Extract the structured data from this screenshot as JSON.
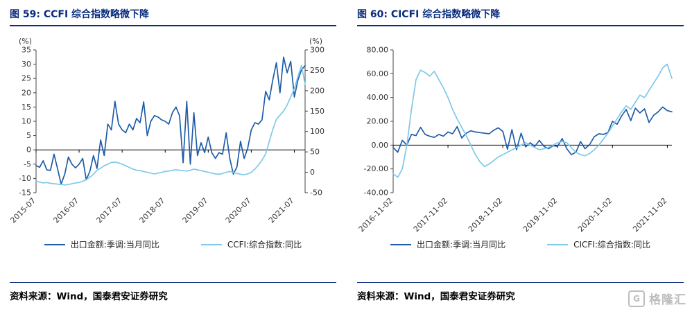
{
  "watermark": {
    "text": "格隆汇",
    "icon": "gelonghui-square-logo"
  },
  "colors": {
    "navy": "#0A2E7E",
    "dark_line": "#1F5CA9",
    "light_line": "#7EC9E8",
    "axis_text": "#333333",
    "zero_line": "#000000",
    "watermark_gray": "#BDBDBD"
  },
  "figures": [
    {
      "source": "资料来源：Wind，国泰君安证券研究"
    },
    {
      "source": "资料来源：Wind，国泰君安证券研究"
    }
  ],
  "chart_data": [
    {
      "type": "line",
      "title": "图 59: CCFI 综合指数略微下降",
      "xlabel": "",
      "ylabel_left": "(%)",
      "ylabel_right": "(%)",
      "grid": false,
      "legend_position": "bottom",
      "x_tick_labels": [
        "2015-07",
        "2016-07",
        "2017-07",
        "2018-07",
        "2019-07",
        "2020-07",
        "2021-07"
      ],
      "x_tick_positions": [
        0,
        12,
        24,
        36,
        48,
        60,
        72
      ],
      "left_axis": {
        "header": "(%)",
        "min": -15,
        "max": 35,
        "step": 5,
        "decimals": 0
      },
      "right_axis": {
        "header": "(%)",
        "min": -50,
        "max": 300,
        "step": 50,
        "decimals": 0
      },
      "series": [
        {
          "name": "出口金额:季调:当月同比",
          "axis": "left",
          "color": "#1F5CA9",
          "values": [
            -5.5,
            -6.1,
            -3.8,
            -7.0,
            -7.2,
            -1.5,
            -6.6,
            -12.0,
            -8.5,
            -2.5,
            -5.0,
            -6.3,
            -5.0,
            -3.0,
            -10.5,
            -7.5,
            -2.0,
            -6.5,
            3.5,
            -2.0,
            9.0,
            7.0,
            17.0,
            9.0,
            7.0,
            6.0,
            9.0,
            7.0,
            11.0,
            9.5,
            16.8,
            5.0,
            10.0,
            12.0,
            11.5,
            10.5,
            10.0,
            9.0,
            13.0,
            15.0,
            12.0,
            -4.5,
            17.0,
            -5.0,
            13.0,
            -2.0,
            2.5,
            -1.0,
            4.5,
            -1.0,
            -3.0,
            -1.0,
            -1.5,
            6.0,
            -3.0,
            -8.5,
            -6.0,
            3.0,
            -3.0,
            0.5,
            7.0,
            9.5,
            9.0,
            10.5,
            20.5,
            17.5,
            24.5,
            30.5,
            20.0,
            32.5,
            27.0,
            31.0,
            18.5,
            24.5,
            28.0,
            29.5
          ]
        },
        {
          "name": "CCFI:综合指数:同比",
          "axis": "right",
          "color": "#7EC9E8",
          "values": [
            -22,
            -24,
            -26,
            -25,
            -27,
            -28,
            -29,
            -30,
            -31,
            -30,
            -28,
            -26,
            -25,
            -22,
            -18,
            -12,
            -5,
            5,
            10,
            16,
            20,
            24,
            25,
            23,
            20,
            16,
            12,
            8,
            5,
            4,
            2,
            0,
            -2,
            -4,
            -2,
            0,
            2,
            3,
            5,
            6,
            5,
            4,
            3,
            5,
            8,
            6,
            4,
            2,
            0,
            -2,
            -4,
            -5,
            -3,
            0,
            2,
            0,
            -3,
            -5,
            -6,
            -4,
            0,
            8,
            18,
            30,
            45,
            75,
            105,
            130,
            140,
            150,
            165,
            185,
            205,
            235,
            262,
            215
          ]
        }
      ]
    },
    {
      "type": "line",
      "title": "图 60: CICFI 综合指数略微下降",
      "xlabel": "",
      "ylabel_left": "",
      "grid": false,
      "legend_position": "bottom",
      "x_tick_labels": [
        "2016-11-02",
        "2017-11-02",
        "2018-11-02",
        "2019-11-02",
        "2020-11-02",
        "2021-11-02"
      ],
      "x_tick_positions": [
        0,
        12,
        24,
        36,
        48,
        60
      ],
      "left_axis": {
        "min": -40,
        "max": 80,
        "step": 20,
        "decimals": 2
      },
      "series": [
        {
          "name": "出口金额:季调:当月同比",
          "axis": "left",
          "color": "#1F5CA9",
          "values": [
            -2.0,
            -6.0,
            4.0,
            0.0,
            9.0,
            8.0,
            15.0,
            9.0,
            7.5,
            6.5,
            9.0,
            7.5,
            11.0,
            9.5,
            15.5,
            6.0,
            10.0,
            12.0,
            11.0,
            10.5,
            10.0,
            9.5,
            12.5,
            14.5,
            11.5,
            -3.5,
            13.0,
            -4.0,
            10.0,
            -1.5,
            2.0,
            -1.0,
            4.0,
            -1.0,
            -3.0,
            -0.5,
            -1.0,
            5.5,
            -3.0,
            -8.0,
            -6.0,
            3.0,
            -3.0,
            0.5,
            7.0,
            9.5,
            9.0,
            10.5,
            20.0,
            17.5,
            24.5,
            30.0,
            20.5,
            31.0,
            27.0,
            30.5,
            19.0,
            25.0,
            28.0,
            32.0,
            29.0,
            28.0
          ]
        },
        {
          "name": "CICFI:综合指数:同比",
          "axis": "left",
          "color": "#7EC9E8",
          "values": [
            -24,
            -27,
            -20,
            0,
            30,
            55,
            63,
            61,
            58,
            62,
            55,
            48,
            40,
            30,
            22,
            15,
            8,
            0,
            -8,
            -14,
            -18,
            -16,
            -13,
            -10,
            -8,
            -6,
            -4,
            -2,
            0,
            2,
            0,
            -2,
            -4,
            -3,
            -2,
            0,
            2,
            3,
            2,
            -2,
            -6,
            -8,
            -9,
            -7,
            -4,
            0,
            5,
            10,
            16,
            22,
            28,
            33,
            30,
            36,
            42,
            40,
            46,
            52,
            58,
            65,
            68,
            56
          ]
        }
      ]
    }
  ]
}
